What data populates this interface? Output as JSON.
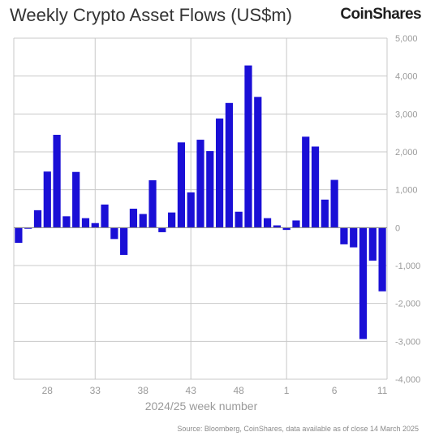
{
  "title": "Weekly Crypto Asset Flows (US$m)",
  "brand": "CoinShares",
  "source": "Source: Bloomberg, CoinShares, data available as of close 14 March 2025",
  "colors": {
    "bar": "#1a0fd6",
    "grid": "#c8c8c8",
    "axis_text": "#9a9a9a",
    "title_text": "#333333"
  },
  "chart_data": {
    "type": "bar",
    "xlabel": "2024/25 week number",
    "ylabel": "",
    "ylim": [
      -4000,
      5000
    ],
    "yticks": [
      5000,
      4000,
      3000,
      2000,
      1000,
      0,
      -1000,
      -2000,
      -3000,
      -4000
    ],
    "ytick_labels": [
      "5,000",
      "4,000",
      "3,000",
      "2,000",
      "1,000",
      "0",
      "-1,000",
      "-2,000",
      "-3,000",
      "-4,000"
    ],
    "xtick_labels": [
      "28",
      "33",
      "38",
      "43",
      "48",
      "1",
      "6",
      "11"
    ],
    "xtick_positions": [
      3,
      8,
      13,
      18,
      23,
      28,
      33,
      38
    ],
    "vertical_grid_after_bar": [
      8,
      18,
      28
    ],
    "grid": true,
    "values": [
      -400,
      -30,
      460,
      1480,
      2450,
      300,
      1470,
      250,
      120,
      610,
      -300,
      -720,
      500,
      360,
      1250,
      -120,
      400,
      2250,
      930,
      2320,
      2020,
      2880,
      3290,
      420,
      4280,
      3450,
      250,
      60,
      -60,
      190,
      2400,
      2140,
      740,
      1260,
      -440,
      -520,
      -2940,
      -870,
      -1680
    ]
  }
}
